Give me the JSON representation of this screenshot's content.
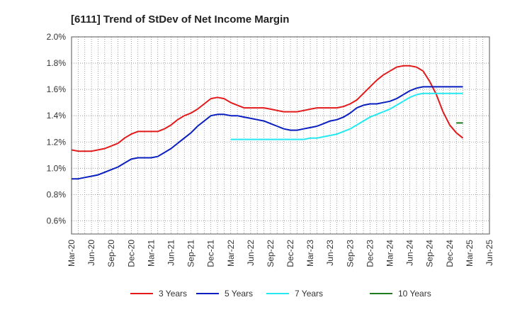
{
  "chart_data": {
    "type": "line",
    "title": "[6111]  Trend of StDev of Net Income Margin",
    "xlabel": "",
    "ylabel": "",
    "ylim": [
      0.5,
      2.0
    ],
    "y_ticks": [
      "0.6%",
      "0.8%",
      "1.0%",
      "1.2%",
      "1.4%",
      "1.6%",
      "1.8%",
      "2.0%"
    ],
    "y_tick_values": [
      0.6,
      0.8,
      1.0,
      1.2,
      1.4,
      1.6,
      1.8,
      2.0
    ],
    "x_ticks": [
      "Mar-20",
      "Jun-20",
      "Sep-20",
      "Dec-20",
      "Mar-21",
      "Jun-21",
      "Sep-21",
      "Dec-21",
      "Mar-22",
      "Jun-22",
      "Sep-22",
      "Dec-22",
      "Mar-23",
      "Jun-23",
      "Sep-23",
      "Dec-23",
      "Mar-24",
      "Jun-24",
      "Sep-24",
      "Dec-24",
      "Mar-25",
      "Jun-25"
    ],
    "grid": true,
    "legend_position": "bottom",
    "series": [
      {
        "name": "3 Years",
        "color": "#e31a1c",
        "points": [
          [
            "Mar-20",
            1.14
          ],
          [
            "Apr-20",
            1.13
          ],
          [
            "May-20",
            1.13
          ],
          [
            "Jun-20",
            1.13
          ],
          [
            "Jul-20",
            1.14
          ],
          [
            "Aug-20",
            1.15
          ],
          [
            "Sep-20",
            1.17
          ],
          [
            "Oct-20",
            1.19
          ],
          [
            "Nov-20",
            1.23
          ],
          [
            "Dec-20",
            1.26
          ],
          [
            "Jan-21",
            1.28
          ],
          [
            "Feb-21",
            1.28
          ],
          [
            "Mar-21",
            1.28
          ],
          [
            "Apr-21",
            1.28
          ],
          [
            "May-21",
            1.3
          ],
          [
            "Jun-21",
            1.33
          ],
          [
            "Jul-21",
            1.37
          ],
          [
            "Aug-21",
            1.4
          ],
          [
            "Sep-21",
            1.42
          ],
          [
            "Oct-21",
            1.45
          ],
          [
            "Nov-21",
            1.49
          ],
          [
            "Dec-21",
            1.53
          ],
          [
            "Jan-22",
            1.54
          ],
          [
            "Feb-22",
            1.53
          ],
          [
            "Mar-22",
            1.5
          ],
          [
            "Apr-22",
            1.48
          ],
          [
            "May-22",
            1.46
          ],
          [
            "Jun-22",
            1.46
          ],
          [
            "Jul-22",
            1.46
          ],
          [
            "Aug-22",
            1.46
          ],
          [
            "Sep-22",
            1.45
          ],
          [
            "Oct-22",
            1.44
          ],
          [
            "Nov-22",
            1.43
          ],
          [
            "Dec-22",
            1.43
          ],
          [
            "Jan-23",
            1.43
          ],
          [
            "Feb-23",
            1.44
          ],
          [
            "Mar-23",
            1.45
          ],
          [
            "Apr-23",
            1.46
          ],
          [
            "May-23",
            1.46
          ],
          [
            "Jun-23",
            1.46
          ],
          [
            "Jul-23",
            1.46
          ],
          [
            "Aug-23",
            1.47
          ],
          [
            "Sep-23",
            1.49
          ],
          [
            "Oct-23",
            1.52
          ],
          [
            "Nov-23",
            1.57
          ],
          [
            "Dec-23",
            1.62
          ],
          [
            "Jan-24",
            1.67
          ],
          [
            "Feb-24",
            1.71
          ],
          [
            "Mar-24",
            1.74
          ],
          [
            "Apr-24",
            1.77
          ],
          [
            "May-24",
            1.78
          ],
          [
            "Jun-24",
            1.78
          ],
          [
            "Jul-24",
            1.77
          ],
          [
            "Aug-24",
            1.74
          ],
          [
            "Sep-24",
            1.66
          ],
          [
            "Oct-24",
            1.56
          ],
          [
            "Nov-24",
            1.43
          ],
          [
            "Dec-24",
            1.33
          ],
          [
            "Jan-25",
            1.27
          ],
          [
            "Feb-25",
            1.23
          ]
        ]
      },
      {
        "name": "5 Years",
        "color": "#0a1fbf",
        "points": [
          [
            "Mar-20",
            0.92
          ],
          [
            "Apr-20",
            0.92
          ],
          [
            "May-20",
            0.93
          ],
          [
            "Jun-20",
            0.94
          ],
          [
            "Jul-20",
            0.95
          ],
          [
            "Aug-20",
            0.97
          ],
          [
            "Sep-20",
            0.99
          ],
          [
            "Oct-20",
            1.01
          ],
          [
            "Nov-20",
            1.04
          ],
          [
            "Dec-20",
            1.07
          ],
          [
            "Jan-21",
            1.08
          ],
          [
            "Feb-21",
            1.08
          ],
          [
            "Mar-21",
            1.08
          ],
          [
            "Apr-21",
            1.09
          ],
          [
            "May-21",
            1.12
          ],
          [
            "Jun-21",
            1.15
          ],
          [
            "Jul-21",
            1.19
          ],
          [
            "Aug-21",
            1.23
          ],
          [
            "Sep-21",
            1.27
          ],
          [
            "Oct-21",
            1.32
          ],
          [
            "Nov-21",
            1.36
          ],
          [
            "Dec-21",
            1.4
          ],
          [
            "Jan-22",
            1.41
          ],
          [
            "Feb-22",
            1.41
          ],
          [
            "Mar-22",
            1.4
          ],
          [
            "Apr-22",
            1.4
          ],
          [
            "May-22",
            1.39
          ],
          [
            "Jun-22",
            1.38
          ],
          [
            "Jul-22",
            1.37
          ],
          [
            "Aug-22",
            1.36
          ],
          [
            "Sep-22",
            1.34
          ],
          [
            "Oct-22",
            1.32
          ],
          [
            "Nov-22",
            1.3
          ],
          [
            "Dec-22",
            1.29
          ],
          [
            "Jan-23",
            1.29
          ],
          [
            "Feb-23",
            1.3
          ],
          [
            "Mar-23",
            1.31
          ],
          [
            "Apr-23",
            1.32
          ],
          [
            "May-23",
            1.34
          ],
          [
            "Jun-23",
            1.36
          ],
          [
            "Jul-23",
            1.37
          ],
          [
            "Aug-23",
            1.39
          ],
          [
            "Sep-23",
            1.42
          ],
          [
            "Oct-23",
            1.46
          ],
          [
            "Nov-23",
            1.48
          ],
          [
            "Dec-23",
            1.49
          ],
          [
            "Jan-24",
            1.49
          ],
          [
            "Feb-24",
            1.5
          ],
          [
            "Mar-24",
            1.51
          ],
          [
            "Apr-24",
            1.53
          ],
          [
            "May-24",
            1.56
          ],
          [
            "Jun-24",
            1.59
          ],
          [
            "Jul-24",
            1.61
          ],
          [
            "Aug-24",
            1.62
          ],
          [
            "Sep-24",
            1.62
          ],
          [
            "Oct-24",
            1.62
          ],
          [
            "Nov-24",
            1.62
          ],
          [
            "Dec-24",
            1.62
          ],
          [
            "Jan-25",
            1.62
          ],
          [
            "Feb-25",
            1.62
          ]
        ]
      },
      {
        "name": "7 Years",
        "color": "#25e8f0",
        "points": [
          [
            "Mar-22",
            1.22
          ],
          [
            "Apr-22",
            1.22
          ],
          [
            "May-22",
            1.22
          ],
          [
            "Jun-22",
            1.22
          ],
          [
            "Jul-22",
            1.22
          ],
          [
            "Aug-22",
            1.22
          ],
          [
            "Sep-22",
            1.22
          ],
          [
            "Oct-22",
            1.22
          ],
          [
            "Nov-22",
            1.22
          ],
          [
            "Dec-22",
            1.22
          ],
          [
            "Jan-23",
            1.22
          ],
          [
            "Feb-23",
            1.22
          ],
          [
            "Mar-23",
            1.23
          ],
          [
            "Apr-23",
            1.23
          ],
          [
            "May-23",
            1.24
          ],
          [
            "Jun-23",
            1.25
          ],
          [
            "Jul-23",
            1.26
          ],
          [
            "Aug-23",
            1.28
          ],
          [
            "Sep-23",
            1.3
          ],
          [
            "Oct-23",
            1.33
          ],
          [
            "Nov-23",
            1.36
          ],
          [
            "Dec-23",
            1.39
          ],
          [
            "Jan-24",
            1.41
          ],
          [
            "Feb-24",
            1.43
          ],
          [
            "Mar-24",
            1.45
          ],
          [
            "Apr-24",
            1.48
          ],
          [
            "May-24",
            1.51
          ],
          [
            "Jun-24",
            1.54
          ],
          [
            "Jul-24",
            1.56
          ],
          [
            "Aug-24",
            1.57
          ],
          [
            "Sep-24",
            1.57
          ],
          [
            "Oct-24",
            1.57
          ],
          [
            "Nov-24",
            1.57
          ],
          [
            "Dec-24",
            1.57
          ],
          [
            "Jan-25",
            1.57
          ],
          [
            "Feb-25",
            1.57
          ]
        ]
      },
      {
        "name": "10 Years",
        "color": "#1e7d1e",
        "points": [
          [
            "Jan-25",
            1.345
          ],
          [
            "Feb-25",
            1.345
          ]
        ]
      }
    ]
  }
}
